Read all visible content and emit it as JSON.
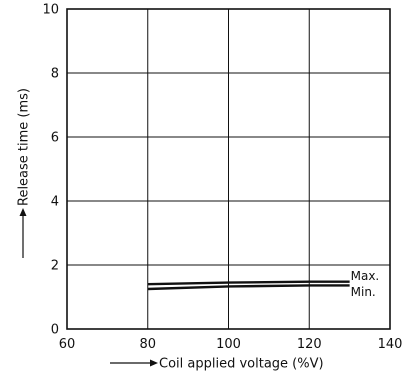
{
  "chart_data": {
    "type": "line",
    "title": "",
    "xlabel": "Coil applied voltage (%V)",
    "ylabel": "Release time (ms)",
    "xlim": [
      60,
      140
    ],
    "ylim": [
      0,
      10
    ],
    "x_ticks": [
      60,
      80,
      100,
      120,
      140
    ],
    "y_ticks": [
      0,
      2,
      4,
      6,
      8,
      10
    ],
    "grid": true,
    "legend": "none",
    "series": [
      {
        "name": "Max.",
        "x": [
          80,
          100,
          120,
          130
        ],
        "y": [
          1.4,
          1.45,
          1.48,
          1.48
        ]
      },
      {
        "name": "Min.",
        "x": [
          80,
          100,
          120,
          130
        ],
        "y": [
          1.25,
          1.33,
          1.36,
          1.36
        ]
      }
    ]
  }
}
